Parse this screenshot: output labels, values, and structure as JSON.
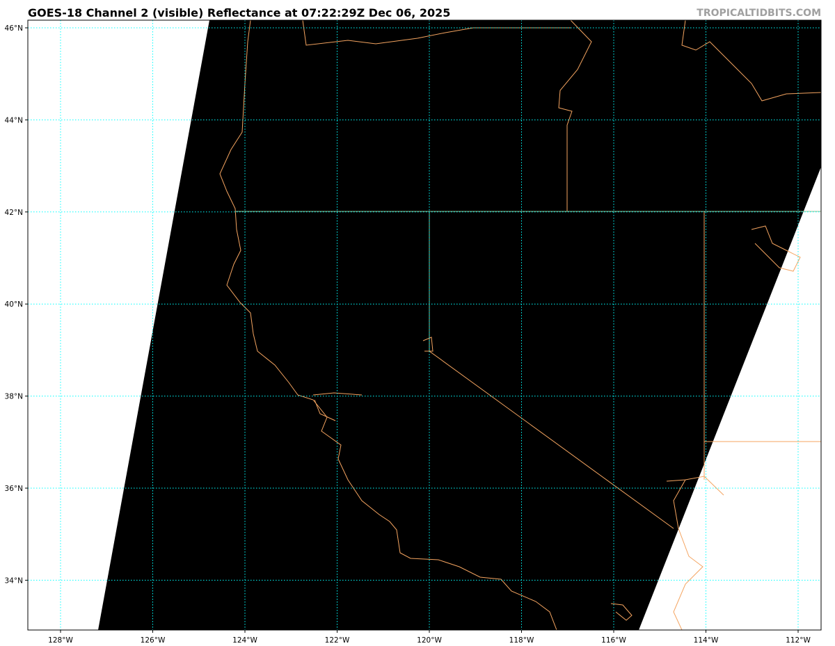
{
  "title": "GOES-18 Channel 2 (visible) Reflectance at 07:22:29Z Dec 06, 2025",
  "credit": "TROPICALTIDBITS.COM",
  "map": {
    "lon_range": [
      -128.7,
      -111.5
    ],
    "lat_range": [
      32.9,
      46.2
    ],
    "lon_ticks": [
      "128°W",
      "126°W",
      "124°W",
      "122°W",
      "120°W",
      "118°W",
      "116°W",
      "114°W",
      "112°W"
    ],
    "lat_ticks": [
      "46°N",
      "44°N",
      "42°N",
      "40°N",
      "38°N",
      "36°N",
      "34°N"
    ],
    "colors": {
      "imagery": "#000000",
      "no_data": "#ffffff",
      "gridlines": "#00ffff",
      "coastlines": "#f4a460",
      "state_borders": "#f4a460",
      "border_42n": "#90c090"
    }
  }
}
